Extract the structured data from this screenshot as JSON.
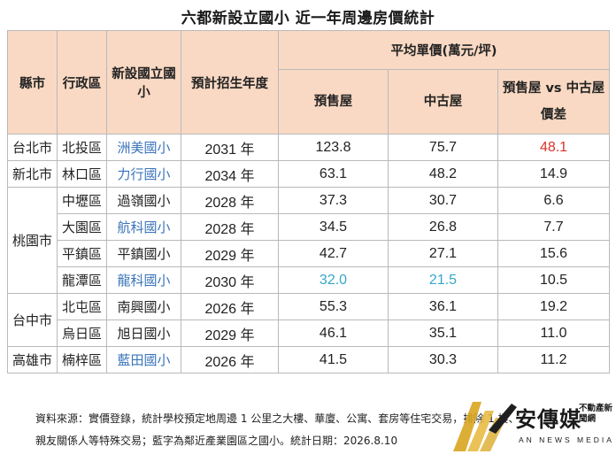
{
  "title": "六都新設立國小  近一年周邊房價統計",
  "headers": {
    "city": "縣市",
    "district": "行政區",
    "school": "新設國立國小",
    "year": "預計招生年度",
    "avg_price": "平均單價(萬元/坪)",
    "presale": "預售屋",
    "resale": "中古屋",
    "diff_line1": "預售屋 vs 中古屋",
    "diff_line2": "價差"
  },
  "cities": [
    {
      "name": "台北市",
      "rowspan": 1
    },
    {
      "name": "新北市",
      "rowspan": 1
    },
    {
      "name": "桃園市",
      "rowspan": 4
    },
    {
      "name": "台中市",
      "rowspan": 2
    },
    {
      "name": "高雄市",
      "rowspan": 1
    }
  ],
  "rows": [
    {
      "district": "北投區",
      "school": "洲美國小",
      "school_color": "blue",
      "year": "2031 年",
      "presale": "123.8",
      "resale": "75.7",
      "diff": "48.1",
      "diff_color": "red"
    },
    {
      "district": "林口區",
      "school": "力行國小",
      "school_color": "blue",
      "year": "2034 年",
      "presale": "63.1",
      "resale": "48.2",
      "diff": "14.9"
    },
    {
      "district": "中壢區",
      "school": "過嶺國小",
      "year": "2028 年",
      "presale": "37.3",
      "resale": "30.7",
      "diff": "6.6"
    },
    {
      "district": "大園區",
      "school": "航科國小",
      "school_color": "blue",
      "year": "2028 年",
      "presale": "34.5",
      "resale": "26.8",
      "diff": "7.7"
    },
    {
      "district": "平鎮區",
      "school": "平鎮國小",
      "year": "2029 年",
      "presale": "42.7",
      "resale": "27.1",
      "diff": "15.6"
    },
    {
      "district": "龍潭區",
      "school": "龍科國小",
      "school_color": "blue",
      "year": "2030 年",
      "presale": "32.0",
      "presale_color": "cyan",
      "resale": "21.5",
      "resale_color": "cyan",
      "diff": "10.5"
    },
    {
      "district": "北屯區",
      "school": "南興國小",
      "year": "2026 年",
      "presale": "55.3",
      "resale": "36.1",
      "diff": "19.2"
    },
    {
      "district": "烏日區",
      "school": "旭日國小",
      "year": "2029 年",
      "presale": "46.1",
      "resale": "35.1",
      "diff": "11.0"
    },
    {
      "district": "楠梓區",
      "school": "藍田國小",
      "school_color": "blue",
      "year": "2026 年",
      "presale": "41.5",
      "resale": "30.3",
      "diff": "11.2"
    }
  ],
  "footnote": {
    "line1": "資料來源：實價登錄，統計學校預定地周邊 1 公里之大樓、華廈、公寓、套房等住宅交易，排除 1 樓、",
    "line2": "親友關係人等特殊交易；藍字為鄰近產業園區之國小。統計日期：2026.8.10"
  },
  "logo": {
    "name": "安傳媒",
    "tag": "不動產新聞網",
    "sub": "AN NEWS MEDIA"
  },
  "colors": {
    "header_bg": "#f9d9c3",
    "blue_text": "#3a74b9",
    "cyan_text": "#36a7c9",
    "red_text": "#d8332a",
    "logo_gold": "#d9a51f"
  }
}
